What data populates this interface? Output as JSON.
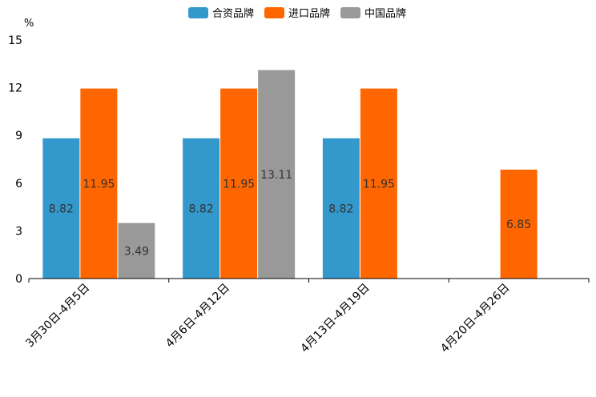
{
  "chart_data": {
    "type": "bar",
    "title": "",
    "xlabel": "",
    "ylabel": "%",
    "ylim": [
      0,
      15
    ],
    "yticks": [
      0,
      3,
      6,
      9,
      12,
      15
    ],
    "grid": false,
    "legend_position": "top-center",
    "categories": [
      "3月30日-4月5日",
      "4月6日-4月12日",
      "4月13日-4月19日",
      "4月20日-4月26日"
    ],
    "series": [
      {
        "name": "合资品牌",
        "color": "#3398CC",
        "values": [
          8.82,
          8.82,
          8.82,
          null
        ]
      },
      {
        "name": "进口品牌",
        "color": "#FF6600",
        "values": [
          11.95,
          11.95,
          11.95,
          6.85
        ]
      },
      {
        "name": "中国品牌",
        "color": "#999999",
        "values": [
          3.49,
          13.11,
          null,
          null
        ]
      }
    ]
  }
}
